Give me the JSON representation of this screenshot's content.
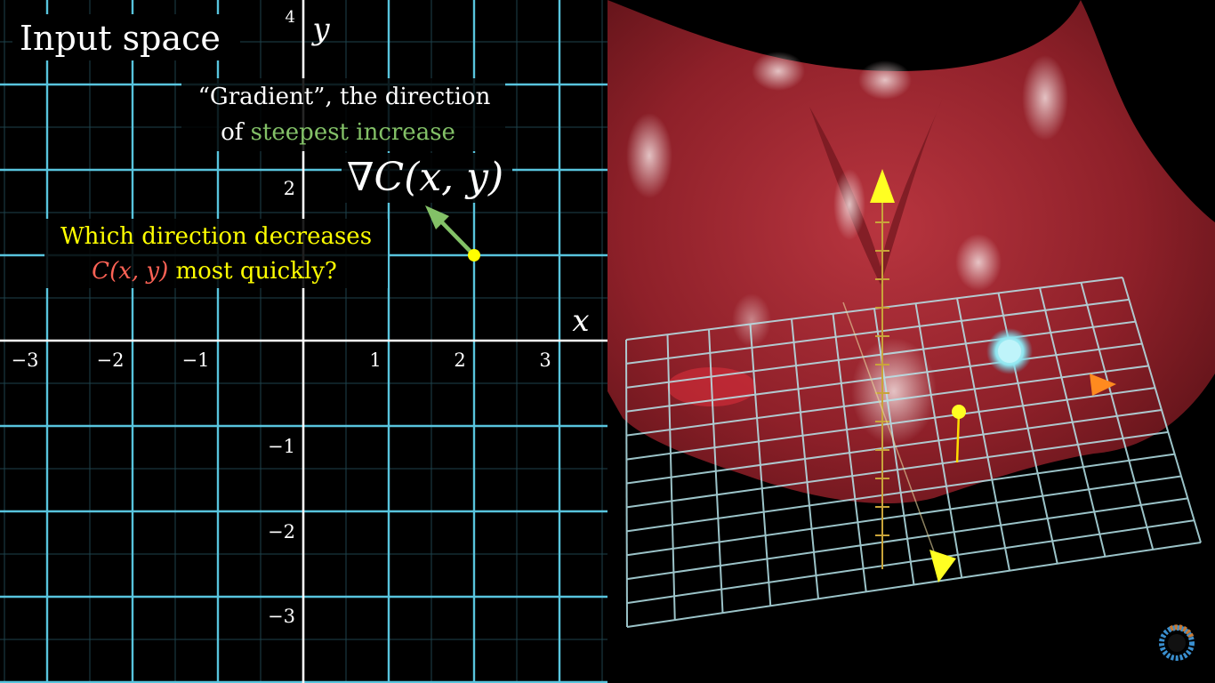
{
  "left_panel": {
    "title": "Input space",
    "x_axis_label": "x",
    "y_axis_label": "y",
    "x_ticks": [
      "−3",
      "−2",
      "−1",
      "1",
      "2",
      "3"
    ],
    "y_ticks": [
      "4",
      "2",
      "−1",
      "−2",
      "−3"
    ],
    "gradient_caption_line1": "“Gradient”, the direction",
    "gradient_caption_line2_prefix": "of ",
    "gradient_caption_highlight": "steepest increase",
    "gradient_formula": "∇C(x, y)",
    "question_line1": "Which direction decreases",
    "question_function": "C(x, y)",
    "question_line2_suffix": " most quickly?"
  },
  "colors": {
    "grid": "#58c4dd",
    "axis": "#ffffff",
    "arrow": "#83c167",
    "point": "#ffff00",
    "highlight_green": "#83c167",
    "question_yellow": "#ffff00",
    "function_red": "#fc6255",
    "surface": "#8b1f28"
  },
  "right_panel": {
    "description_icon": "logo-icon"
  }
}
